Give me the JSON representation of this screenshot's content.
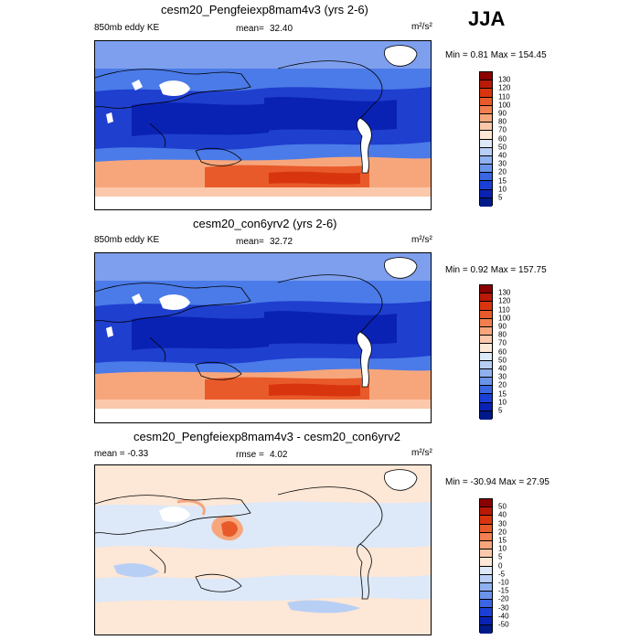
{
  "season": "JJA",
  "panels": [
    {
      "title": "cesm20_Pengfeiexp8mam4v3 (yrs 2-6)",
      "left_label": "850mb eddy KE",
      "stat_label": "mean=",
      "stat_value": "32.40",
      "units": "m²/s²",
      "minmax": "Min =   0.81 Max = 154.45",
      "colorbar_labels": [
        "130",
        "120",
        "110",
        "100",
        "90",
        "80",
        "70",
        "60",
        "50",
        "40",
        "30",
        "20",
        "15",
        "10",
        "5"
      ],
      "colorbar_colors": [
        "#8b0000",
        "#b91a06",
        "#d8350f",
        "#e85a2a",
        "#f17f50",
        "#f7a67c",
        "#fbc8ac",
        "#fde7d6",
        "#dde8f8",
        "#b8cff5",
        "#8fb1ef",
        "#6a93ea",
        "#3a66e3",
        "#1a3fd6",
        "#0a22b4",
        "#001a8a"
      ]
    },
    {
      "title": "cesm20_con6yrv2 (yrs 2-6)",
      "left_label": "850mb eddy KE",
      "stat_label": "mean=",
      "stat_value": "32.72",
      "units": "m²/s²",
      "minmax": "Min =   0.92 Max = 157.75",
      "colorbar_labels": [
        "130",
        "120",
        "110",
        "100",
        "90",
        "80",
        "70",
        "60",
        "50",
        "40",
        "30",
        "20",
        "15",
        "10",
        "5"
      ],
      "colorbar_colors": [
        "#8b0000",
        "#b91a06",
        "#d8350f",
        "#e85a2a",
        "#f17f50",
        "#f7a67c",
        "#fbc8ac",
        "#fde7d6",
        "#dde8f8",
        "#b8cff5",
        "#8fb1ef",
        "#6a93ea",
        "#3a66e3",
        "#1a3fd6",
        "#0a22b4",
        "#001a8a"
      ]
    },
    {
      "title": "cesm20_Pengfeiexp8mam4v3 - cesm20_con6yrv2",
      "left_label": "mean =  -0.33",
      "stat_label": "rmse =",
      "stat_value": "4.02",
      "units": "m²/s²",
      "minmax": "Min = -30.94 Max =  27.95",
      "colorbar_labels": [
        "50",
        "40",
        "30",
        "20",
        "15",
        "10",
        "5",
        "0",
        "-5",
        "-10",
        "-15",
        "-20",
        "-30",
        "-40",
        "-50"
      ],
      "colorbar_colors": [
        "#8b0000",
        "#b91a06",
        "#d8350f",
        "#e85a2a",
        "#f17f50",
        "#f7a67c",
        "#fbc8ac",
        "#fde7d6",
        "#dde8f8",
        "#b8cff5",
        "#8fb1ef",
        "#6a93ea",
        "#3a66e3",
        "#1a3fd6",
        "#0a22b4",
        "#001a8a"
      ]
    }
  ],
  "chart_data": {
    "type": "heatmap",
    "title": "JJA",
    "panels": [
      {
        "name": "cesm20_Pengfeiexp8mam4v3 (yrs 2-6)",
        "variable": "850mb eddy KE",
        "mean": 32.4,
        "min": 0.81,
        "max": 154.45,
        "units": "m²/s²",
        "levels": [
          5,
          10,
          15,
          20,
          30,
          40,
          50,
          60,
          70,
          80,
          90,
          100,
          110,
          120,
          130
        ]
      },
      {
        "name": "cesm20_con6yrv2 (yrs 2-6)",
        "variable": "850mb eddy KE",
        "mean": 32.72,
        "min": 0.92,
        "max": 157.75,
        "units": "m²/s²",
        "levels": [
          5,
          10,
          15,
          20,
          30,
          40,
          50,
          60,
          70,
          80,
          90,
          100,
          110,
          120,
          130
        ]
      },
      {
        "name": "cesm20_Pengfeiexp8mam4v3 - cesm20_con6yrv2",
        "mean": -0.33,
        "rmse": 4.02,
        "min": -30.94,
        "max": 27.95,
        "units": "m²/s²",
        "levels": [
          -50,
          -40,
          -30,
          -20,
          -15,
          -10,
          -5,
          0,
          5,
          10,
          15,
          20,
          30,
          40,
          50
        ]
      }
    ]
  }
}
